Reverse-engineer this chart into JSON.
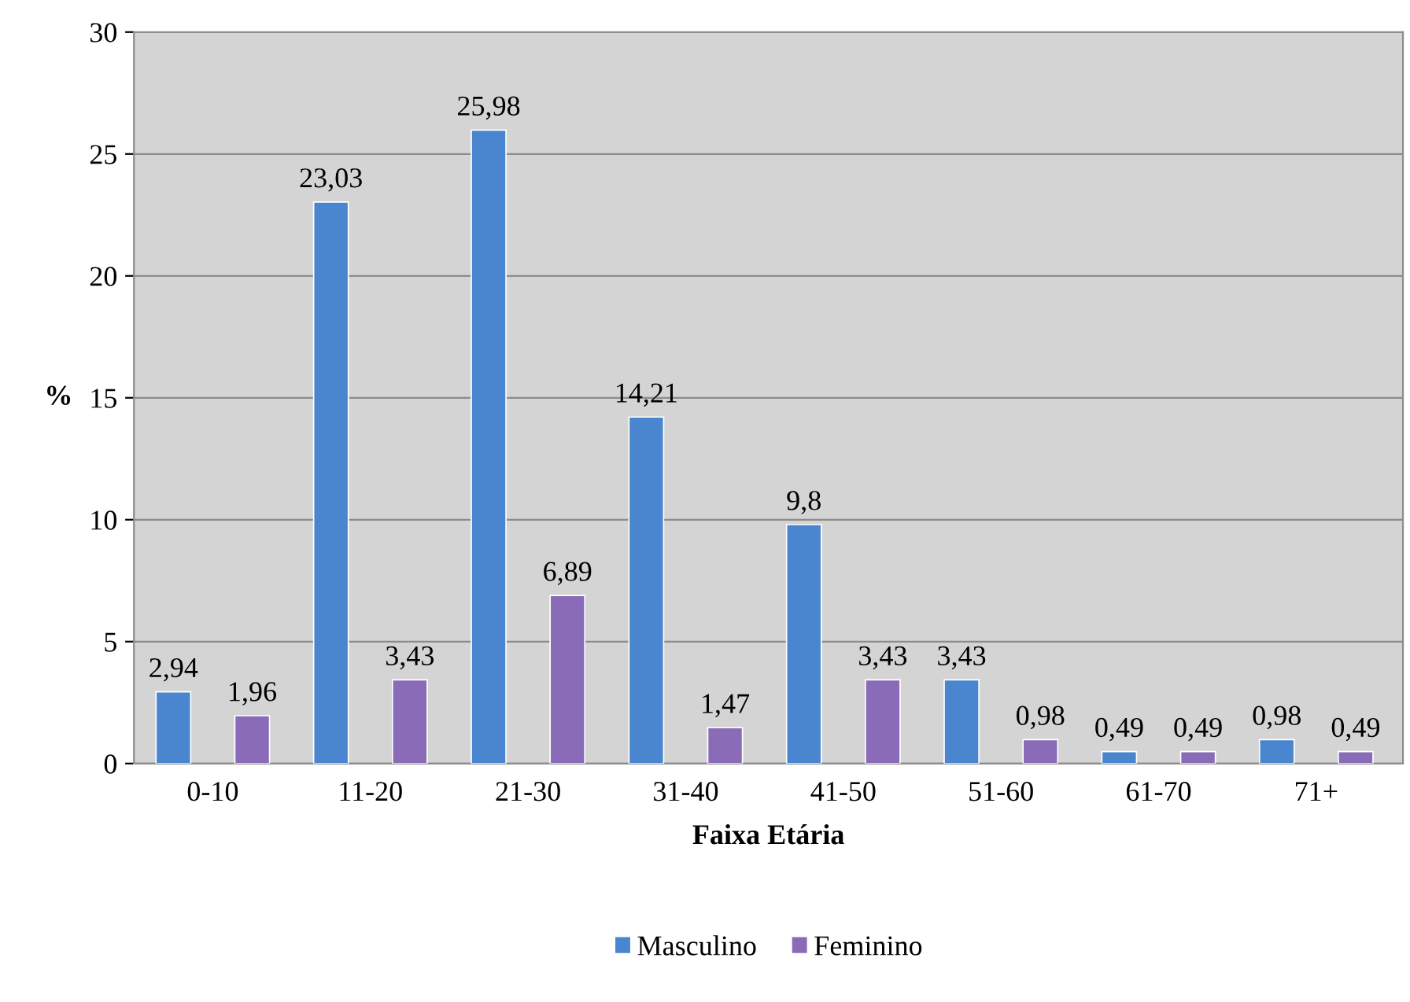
{
  "chart_data": {
    "type": "bar",
    "xlabel": "Faixa Etária",
    "ylabel": "%",
    "categories": [
      "0-10",
      "11-20",
      "21-30",
      "31-40",
      "41-50",
      "51-60",
      "61-70",
      "71+"
    ],
    "series": [
      {
        "name": "Masculino",
        "color": "#4a86cf",
        "values": [
          2.94,
          23.03,
          25.98,
          14.21,
          9.8,
          3.43,
          0.49,
          0.98
        ],
        "value_labels": [
          "2,94",
          "23,03",
          "25,98",
          "14,21",
          "9,8",
          "3,43",
          "0,49",
          "0,98"
        ]
      },
      {
        "name": "Feminino",
        "color": "#8a6bb8",
        "values": [
          1.96,
          3.43,
          6.89,
          1.47,
          3.43,
          0.98,
          0.49,
          0.49
        ],
        "value_labels": [
          "1,96",
          "3,43",
          "6,89",
          "1,47",
          "3,43",
          "0,98",
          "0,49",
          "0,49"
        ]
      }
    ],
    "ylim": [
      0,
      30
    ],
    "yticks": [
      0,
      5,
      10,
      15,
      20,
      25,
      30
    ],
    "grid": "y",
    "legend": "bottom"
  }
}
